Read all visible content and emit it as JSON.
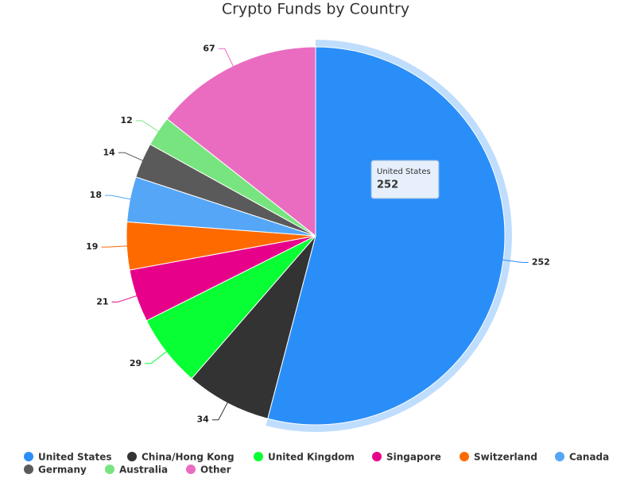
{
  "chart_data": {
    "type": "pie",
    "title": "Crypto Funds by Country",
    "categories": [
      "United States",
      "China/Hong Kong",
      "United Kingdom",
      "Singapore",
      "Switzerland",
      "Canada",
      "Germany",
      "Australia",
      "Other"
    ],
    "values": [
      252,
      34,
      29,
      21,
      19,
      18,
      14,
      12,
      67
    ],
    "colors": [
      "#2a8ef8",
      "#333333",
      "#08ff33",
      "#e6008a",
      "#ff6a00",
      "#55a6f7",
      "#5a5a5a",
      "#78e47f",
      "#ea6cc1"
    ]
  }
}
